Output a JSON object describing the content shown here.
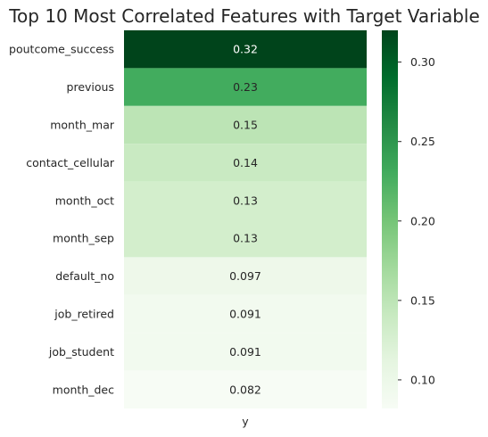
{
  "chart_data": {
    "type": "heatmap",
    "title": "Top 10 Most Correlated Features with Target Variable",
    "column": "y",
    "rows": [
      "poutcome_success",
      "previous",
      "month_mar",
      "contact_cellular",
      "month_oct",
      "month_sep",
      "default_no",
      "job_retired",
      "job_student",
      "month_dec"
    ],
    "values": [
      0.32,
      0.23,
      0.15,
      0.14,
      0.13,
      0.13,
      0.097,
      0.091,
      0.091,
      0.082
    ],
    "annotations": [
      "0.32",
      "0.23",
      "0.15",
      "0.14",
      "0.13",
      "0.13",
      "0.097",
      "0.091",
      "0.091",
      "0.082"
    ],
    "colormap": "Greens",
    "colorbar": {
      "vmin": 0.082,
      "vmax": 0.32,
      "ticks": [
        0.1,
        0.15,
        0.2,
        0.25,
        0.3
      ],
      "tick_labels": [
        "0.10",
        "0.15",
        "0.20",
        "0.25",
        "0.30"
      ]
    }
  }
}
